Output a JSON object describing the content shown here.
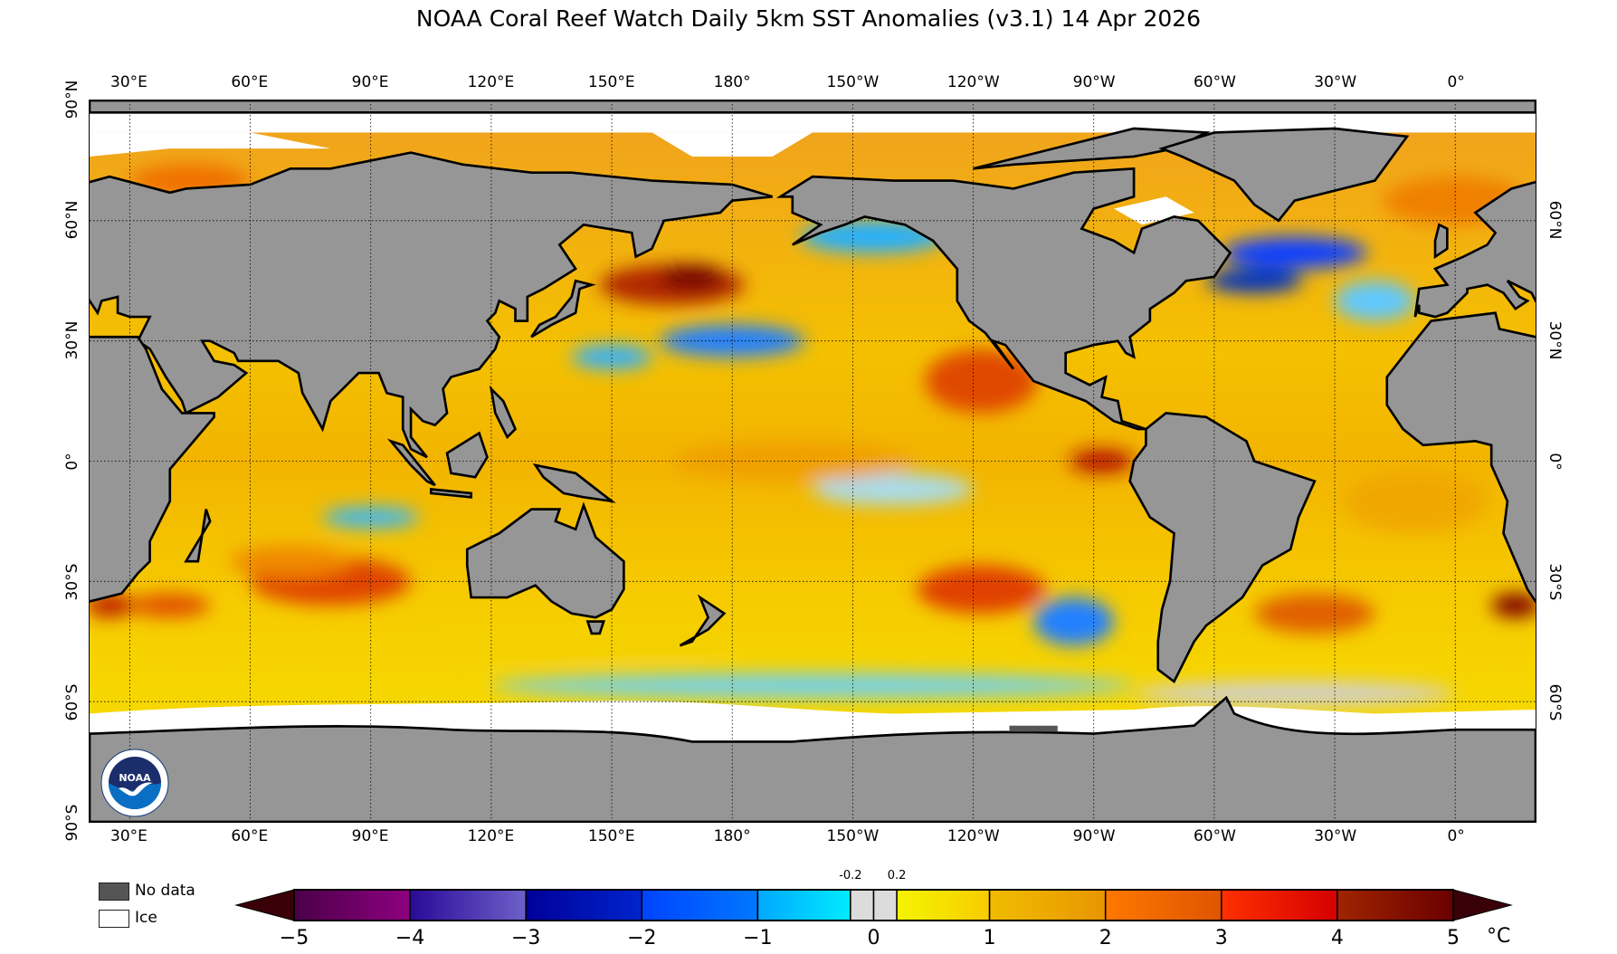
{
  "title": "NOAA Coral Reef Watch Daily 5km SST Anomalies  (v3.1)   14 Apr 2026",
  "lon_labels": [
    "30°E",
    "60°E",
    "90°E",
    "120°E",
    "150°E",
    "180°",
    "150°W",
    "120°W",
    "90°W",
    "60°W",
    "30°W",
    "0°"
  ],
  "lat_labels": [
    "90°N",
    "60°N",
    "30°N",
    "0°",
    "30°S",
    "60°S",
    "90°S"
  ],
  "lat_labels_right": [
    "60°N",
    "30°N",
    "0°",
    "30°S",
    "60°S"
  ],
  "logo": {
    "text": "NOAA",
    "ring_text": "NATIONAL OCEANIC AND ATMOSPHERIC ADMINISTRATION · U.S. DEPARTMENT OF COMMERCE"
  },
  "legend": {
    "no_data": {
      "label": "No data",
      "color": "#555555"
    },
    "ice": {
      "label": "Ice",
      "color": "#ffffff"
    },
    "land_color": "#969696"
  },
  "colorbar": {
    "unit": "°C",
    "range": [
      -5,
      5
    ],
    "ticks": [
      "−5",
      "−4",
      "−3",
      "−2",
      "−1",
      "0",
      "1",
      "2",
      "3",
      "4",
      "5"
    ],
    "minor_ticks": [
      "-0.2",
      "0.2"
    ],
    "extend_low_color": "#3a0008",
    "extend_high_color": "#3a0008",
    "segments": [
      {
        "from": -5,
        "to": -4,
        "colors": [
          "#4a0048",
          "#8e0080"
        ]
      },
      {
        "from": -4,
        "to": -3,
        "colors": [
          "#2a0a98",
          "#6e60c8"
        ]
      },
      {
        "from": -3,
        "to": -2,
        "colors": [
          "#00009a",
          "#0024cc"
        ]
      },
      {
        "from": -2,
        "to": -1,
        "colors": [
          "#0044ff",
          "#0078ff"
        ]
      },
      {
        "from": -1,
        "to": -0.2,
        "colors": [
          "#00a8ff",
          "#00ecff"
        ]
      },
      {
        "from": -0.2,
        "to": 0,
        "colors": [
          "#dcdcdc",
          "#dcdcdc"
        ]
      },
      {
        "from": 0,
        "to": 0.2,
        "colors": [
          "#dcdcdc",
          "#dcdcdc"
        ]
      },
      {
        "from": 0.2,
        "to": 1,
        "colors": [
          "#f4f400",
          "#f8cc00"
        ]
      },
      {
        "from": 1,
        "to": 2,
        "colors": [
          "#f0bc00",
          "#e89600"
        ]
      },
      {
        "from": 2,
        "to": 3,
        "colors": [
          "#ff7800",
          "#e05400"
        ]
      },
      {
        "from": 3,
        "to": 4,
        "colors": [
          "#ff3000",
          "#d40000"
        ]
      },
      {
        "from": 4,
        "to": 5,
        "colors": [
          "#a02400",
          "#6a0000"
        ]
      }
    ]
  }
}
